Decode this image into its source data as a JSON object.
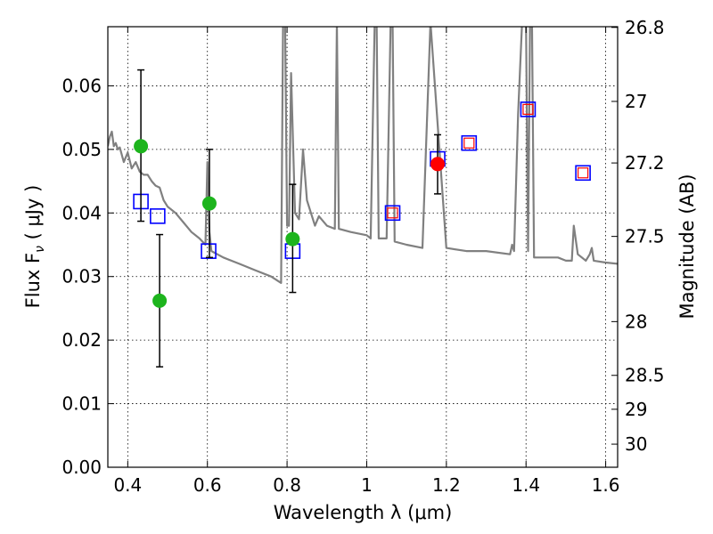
{
  "chart_data": {
    "type": "scatter",
    "xlabel": "Wavelength  λ (μm)",
    "ylabel": "Flux  F",
    "ylabel_sub": "ν",
    "ylabel_unit": " ( μJy )",
    "y2label": "Magnitude (AB)",
    "xlim": [
      0.35,
      1.63
    ],
    "ylim": [
      0.0,
      0.0693
    ],
    "grid": true,
    "x_ticks": [
      0.4,
      0.6,
      0.8,
      1.0,
      1.2,
      1.4,
      1.6
    ],
    "x_tick_labels": [
      "0.4",
      "0.6",
      "0.8",
      "1",
      "1.2",
      "1.4",
      "1.6"
    ],
    "y_ticks": [
      0.0,
      0.01,
      0.02,
      0.03,
      0.04,
      0.05,
      0.06
    ],
    "y_tick_labels": [
      "0.00",
      "0.01",
      "0.02",
      "0.03",
      "0.04",
      "0.05",
      "0.06"
    ],
    "mag_ticks": [
      26.8,
      27.0,
      27.2,
      27.5,
      28.0,
      28.5,
      29.0,
      30.0
    ],
    "mag_tick_labels": [
      "26.8",
      "27",
      "27.2",
      "27.5",
      "28",
      "28.5",
      "29",
      "30"
    ],
    "colors": {
      "model": "#808080",
      "detection": "#1db41d",
      "highlight": "#ff0000",
      "model_band": "#0000ff",
      "model_band_inner": "#ff0000",
      "errorbar": "#000000"
    },
    "series": [
      {
        "name": "model spectrum",
        "kind": "line",
        "x": [
          0.35,
          0.355,
          0.36,
          0.365,
          0.37,
          0.375,
          0.38,
          0.39,
          0.4,
          0.41,
          0.42,
          0.43,
          0.44,
          0.45,
          0.46,
          0.47,
          0.48,
          0.49,
          0.5,
          0.52,
          0.54,
          0.56,
          0.58,
          0.595,
          0.6,
          0.605,
          0.61,
          0.64,
          0.68,
          0.72,
          0.76,
          0.785,
          0.79,
          0.795,
          0.8,
          0.805,
          0.81,
          0.82,
          0.83,
          0.84,
          0.85,
          0.86,
          0.87,
          0.88,
          0.9,
          0.92,
          0.925,
          0.93,
          0.96,
          1.0,
          1.01,
          1.02,
          1.025,
          1.03,
          1.05,
          1.06,
          1.065,
          1.07,
          1.1,
          1.14,
          1.16,
          1.2,
          1.25,
          1.3,
          1.36,
          1.365,
          1.37,
          1.38,
          1.39,
          1.395,
          1.4,
          1.405,
          1.41,
          1.415,
          1.42,
          1.44,
          1.48,
          1.5,
          1.515,
          1.52,
          1.53,
          1.55,
          1.56,
          1.565,
          1.57,
          1.6,
          1.63
        ],
        "y": [
          0.0505,
          0.052,
          0.0528,
          0.0505,
          0.051,
          0.05,
          0.0503,
          0.048,
          0.0495,
          0.047,
          0.048,
          0.0465,
          0.046,
          0.046,
          0.045,
          0.0443,
          0.044,
          0.042,
          0.041,
          0.04,
          0.0385,
          0.037,
          0.036,
          0.035,
          0.048,
          0.037,
          0.034,
          0.033,
          0.032,
          0.031,
          0.03,
          0.029,
          0.07,
          0.07,
          0.038,
          0.038,
          0.062,
          0.04,
          0.039,
          0.05,
          0.042,
          0.04,
          0.038,
          0.0395,
          0.038,
          0.0375,
          0.07,
          0.0375,
          0.037,
          0.0365,
          0.036,
          0.07,
          0.07,
          0.036,
          0.036,
          0.07,
          0.07,
          0.0355,
          0.035,
          0.0345,
          0.07,
          0.0345,
          0.034,
          0.034,
          0.0335,
          0.035,
          0.034,
          0.0555,
          0.07,
          0.07,
          0.07,
          0.034,
          0.07,
          0.07,
          0.033,
          0.033,
          0.033,
          0.0325,
          0.0325,
          0.038,
          0.0335,
          0.0325,
          0.0335,
          0.0345,
          0.0325,
          0.0322,
          0.032
        ]
      },
      {
        "name": "observed photometry",
        "kind": "points",
        "marker": "circle",
        "points": [
          {
            "x": 0.433,
            "y": 0.0505,
            "err": [
              0.0387,
              0.0625
            ]
          },
          {
            "x": 0.48,
            "y": 0.0262,
            "err": [
              0.0158,
              0.0366
            ]
          },
          {
            "x": 0.605,
            "y": 0.0415,
            "err": [
              0.033,
              0.05
            ]
          },
          {
            "x": 0.814,
            "y": 0.0359,
            "err": [
              0.0275,
              0.0445
            ]
          }
        ]
      },
      {
        "name": "highlighted photometry",
        "kind": "points",
        "marker": "circle",
        "points": [
          {
            "x": 1.178,
            "y": 0.0477,
            "err": [
              0.043,
              0.0523
            ]
          }
        ]
      },
      {
        "name": "model band fluxes",
        "kind": "points",
        "marker": "square",
        "points": [
          {
            "x": 0.433,
            "y": 0.0418,
            "inner": false
          },
          {
            "x": 0.475,
            "y": 0.0395,
            "inner": false
          },
          {
            "x": 0.603,
            "y": 0.034,
            "inner": false
          },
          {
            "x": 0.814,
            "y": 0.034,
            "inner": false
          },
          {
            "x": 1.065,
            "y": 0.04,
            "inner": true
          },
          {
            "x": 1.178,
            "y": 0.0485,
            "inner": false
          },
          {
            "x": 1.257,
            "y": 0.051,
            "inner": true
          },
          {
            "x": 1.405,
            "y": 0.0563,
            "inner": true
          },
          {
            "x": 1.543,
            "y": 0.0463,
            "inner": true
          }
        ]
      }
    ]
  }
}
